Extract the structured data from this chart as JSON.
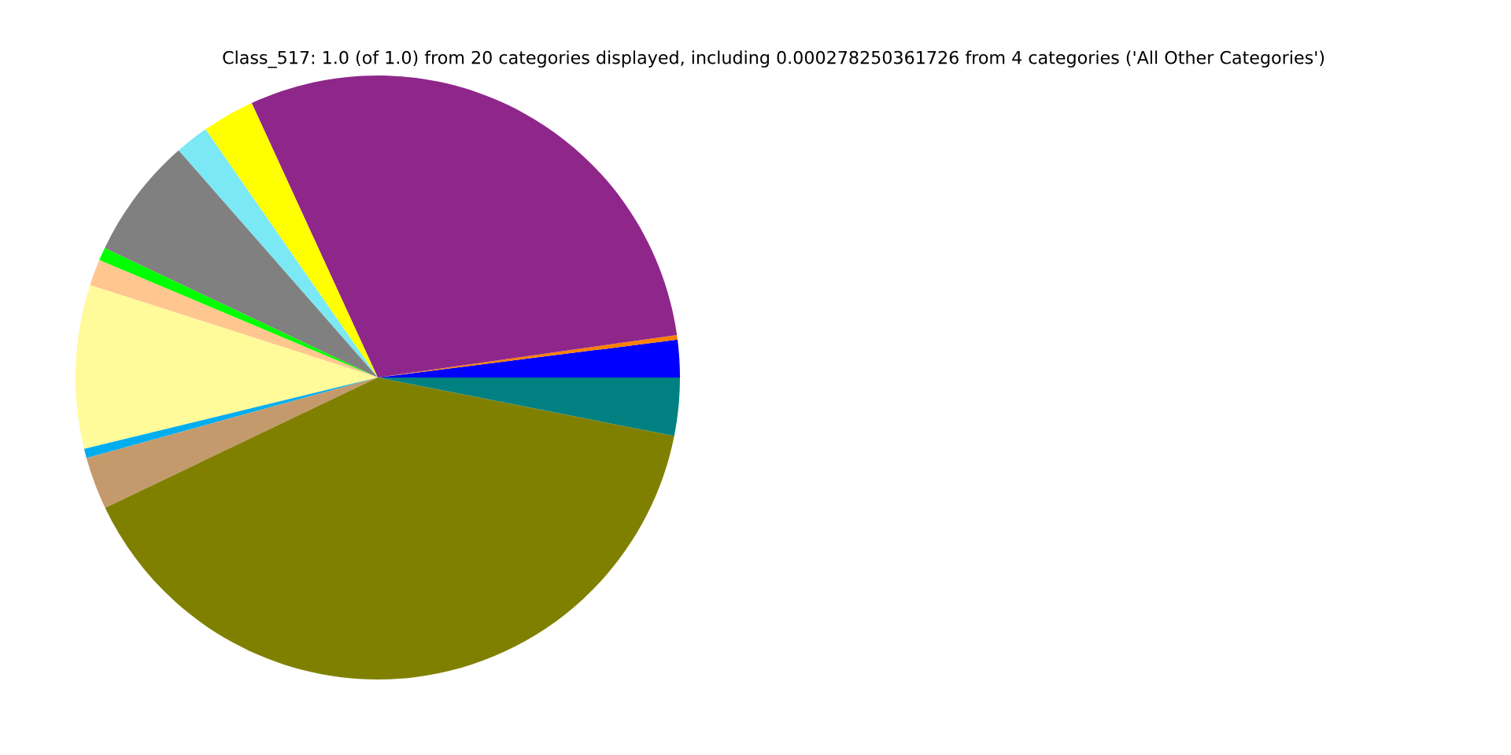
{
  "chart_data": {
    "type": "pie",
    "title": "Class_517: 1.0 (of 1.0) from 20 categories displayed, including 0.000278250361726 from 4 categories ('All Other Categories')",
    "categories": [
      null,
      null,
      null,
      null,
      null,
      null,
      null,
      null,
      null,
      null,
      null,
      null,
      null
    ],
    "values": [
      2.0,
      0.25,
      29.6,
      2.8,
      1.8,
      6.5,
      0.7,
      1.4,
      8.75,
      0.5,
      2.8,
      39.8,
      3.1
    ],
    "colors": [
      "#0000ff",
      "#ff8000",
      "#8f278b",
      "#ffff00",
      "#7ae9f5",
      "#808080",
      "#00ff00",
      "#ffc78f",
      "#fffa9a",
      "#00aeef",
      "#c49a6c",
      "#808000",
      "#008080"
    ]
  }
}
